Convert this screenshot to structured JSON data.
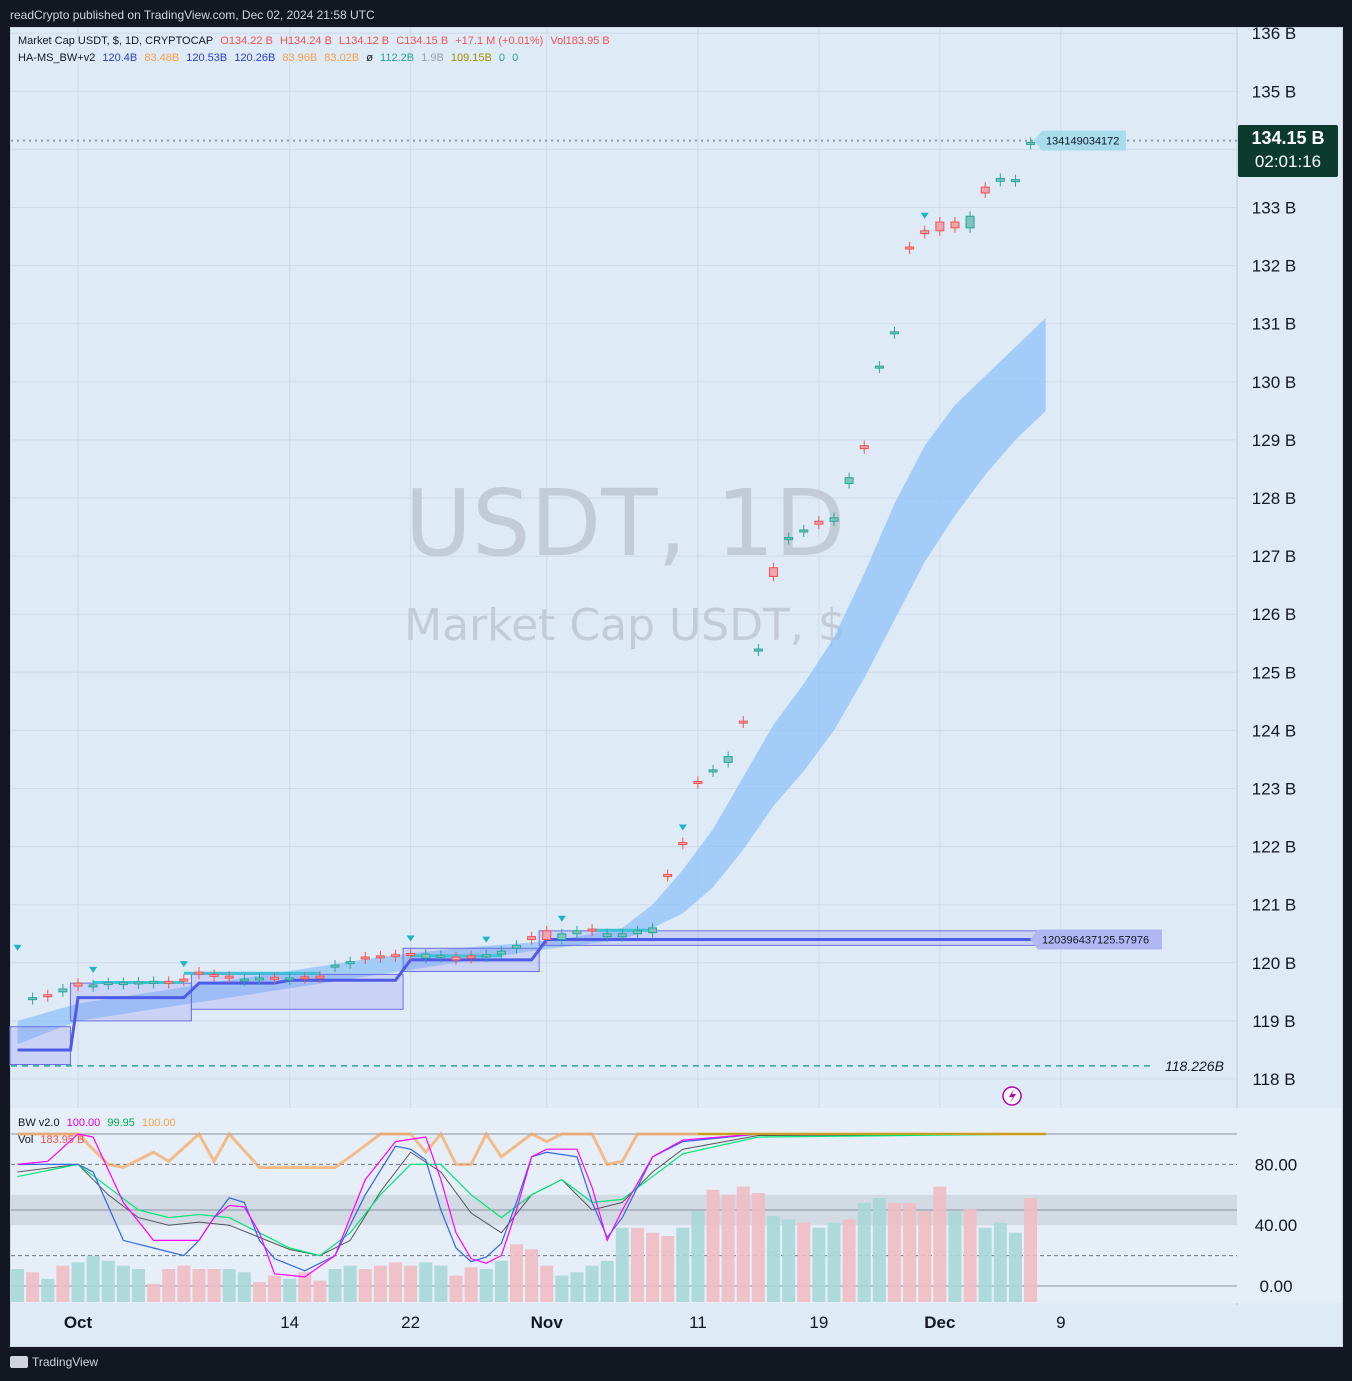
{
  "header": {
    "publisher": "readCrypto published on TradingView.com, Dec 02, 2024 21:58 UTC"
  },
  "footer": {
    "brand": "TradingView"
  },
  "legend": {
    "main": {
      "symbol": "Market Cap USDT, $, 1D, CRYPTOCAP",
      "o": "O134.22 B",
      "h": "H134.24 B",
      "l": "L134.12 B",
      "c": "C134.15 B",
      "chg": "+17.1 M (+0.01%)",
      "vol": "Vol183.95 B"
    },
    "indicator": {
      "name": "HA-MS_BW+v2",
      "v1": "120.4B",
      "v2": "83.48B",
      "v3": "120.53B",
      "v4": "120.26B",
      "v5": "83.96B",
      "v6": "83.02B",
      "sym": "ø",
      "v7": "112.2B",
      "v8": "1.9B",
      "v9": "109.15B",
      "v10": "0",
      "v11": "0"
    },
    "bw": {
      "name": "BW v2.0",
      "a": "100.00",
      "b": "99.95",
      "c": "100.00"
    },
    "vol": {
      "name": "Vol",
      "value": "183.95 B"
    }
  },
  "watermark": {
    "line1": "USDT, 1D",
    "line2": "Market Cap USDT, $"
  },
  "price_badge": {
    "value": "134.15 B",
    "timer": "02:01:16"
  },
  "labels": {
    "top_line": "134149034172",
    "mid_line": "120396437125.57976",
    "dashed_line": "118.226B"
  },
  "colors": {
    "up": "#26a69a",
    "down": "#ef5350",
    "band": "#90c2f9",
    "stair": "#4e5be6",
    "pink": "#ff00ff",
    "green": "#00e676",
    "orange": "#f7a14d"
  },
  "chart_data": {
    "type": "candlestick",
    "y_axis_ticks": [
      "136 B",
      "135 B",
      "134 B",
      "133 B",
      "132 B",
      "131 B",
      "130 B",
      "129 B",
      "128 B",
      "127 B",
      "126 B",
      "125 B",
      "124 B",
      "123 B",
      "122 B",
      "121 B",
      "120 B",
      "119 B",
      "118 B"
    ],
    "osc_axis_ticks": [
      "80.00",
      "40.00",
      "0.00"
    ],
    "x_axis_ticks": [
      "Oct",
      "14",
      "22",
      "Nov",
      "11",
      "19",
      "Dec",
      "9"
    ],
    "x_ticks_pos": [
      0,
      14,
      22,
      31,
      41,
      49,
      57,
      65
    ],
    "ylim": [
      117.5,
      136.0
    ],
    "candles": [
      [
        -3,
        119.4,
        119.4,
        "u"
      ],
      [
        -2,
        119.45,
        119.45,
        "d"
      ],
      [
        -1,
        119.5,
        119.55,
        "u"
      ],
      [
        0,
        119.6,
        119.65,
        "d"
      ],
      [
        1,
        119.6,
        119.62,
        "u"
      ],
      [
        2,
        119.64,
        119.66,
        "u"
      ],
      [
        3,
        119.65,
        119.66,
        "u"
      ],
      [
        4,
        119.66,
        119.67,
        "u"
      ],
      [
        5,
        119.66,
        119.68,
        "u"
      ],
      [
        6,
        119.67,
        119.68,
        "d"
      ],
      [
        7,
        119.7,
        119.72,
        "d"
      ],
      [
        8,
        119.82,
        119.84,
        "d"
      ],
      [
        9,
        119.78,
        119.8,
        "d"
      ],
      [
        10,
        119.75,
        119.77,
        "d"
      ],
      [
        11,
        119.7,
        119.72,
        "u"
      ],
      [
        12,
        119.72,
        119.74,
        "u"
      ],
      [
        13,
        119.73,
        119.75,
        "d"
      ],
      [
        14,
        119.72,
        119.74,
        "u"
      ],
      [
        15,
        119.74,
        119.76,
        "d"
      ],
      [
        16,
        119.75,
        119.77,
        "d"
      ],
      [
        17,
        119.95,
        119.96,
        "u"
      ],
      [
        18,
        120.0,
        120.02,
        "u"
      ],
      [
        19,
        120.08,
        120.1,
        "d"
      ],
      [
        20,
        120.1,
        120.12,
        "d"
      ],
      [
        21,
        120.12,
        120.14,
        "d"
      ],
      [
        22,
        120.14,
        120.16,
        "d"
      ],
      [
        23,
        120.08,
        120.15,
        "u"
      ],
      [
        24,
        120.1,
        120.13,
        "u"
      ],
      [
        25,
        120.05,
        120.1,
        "d"
      ],
      [
        26,
        120.08,
        120.12,
        "d"
      ],
      [
        27,
        120.1,
        120.14,
        "u"
      ],
      [
        28,
        120.15,
        120.2,
        "u"
      ],
      [
        29,
        120.25,
        120.3,
        "u"
      ],
      [
        30,
        120.4,
        120.45,
        "d"
      ],
      [
        31,
        120.4,
        120.55,
        "d"
      ],
      [
        32,
        120.4,
        120.5,
        "u"
      ],
      [
        33,
        120.5,
        120.55,
        "u"
      ],
      [
        34,
        120.55,
        120.58,
        "d"
      ],
      [
        35,
        120.45,
        120.5,
        "u"
      ],
      [
        36,
        120.45,
        120.5,
        "u"
      ],
      [
        37,
        120.5,
        120.55,
        "u"
      ],
      [
        38,
        120.52,
        120.6,
        "u"
      ],
      [
        39,
        121.5,
        121.52,
        "d"
      ],
      [
        40,
        122.05,
        122.07,
        "d"
      ],
      [
        41,
        123.1,
        123.12,
        "d"
      ],
      [
        42,
        123.3,
        123.32,
        "u"
      ],
      [
        43,
        123.45,
        123.55,
        "u"
      ],
      [
        44,
        124.13,
        124.16,
        "d"
      ],
      [
        45,
        125.37,
        125.4,
        "u"
      ],
      [
        46,
        126.65,
        126.8,
        "d"
      ],
      [
        47,
        127.3,
        127.32,
        "u"
      ],
      [
        48,
        127.43,
        127.45,
        "u"
      ],
      [
        49,
        127.55,
        127.6,
        "d"
      ],
      [
        50,
        127.6,
        127.66,
        "u"
      ],
      [
        51,
        128.25,
        128.35,
        "u"
      ],
      [
        52,
        128.85,
        128.9,
        "d"
      ],
      [
        53,
        130.25,
        130.27,
        "u"
      ],
      [
        54,
        130.84,
        130.86,
        "u"
      ],
      [
        55,
        132.3,
        132.32,
        "d"
      ],
      [
        56,
        132.55,
        132.6,
        "d"
      ],
      [
        57,
        132.6,
        132.75,
        "d"
      ],
      [
        58,
        132.65,
        132.75,
        "d"
      ],
      [
        59,
        132.65,
        132.85,
        "u"
      ],
      [
        60,
        133.25,
        133.35,
        "d"
      ],
      [
        61,
        133.45,
        133.5,
        "u"
      ],
      [
        62,
        133.47,
        133.48,
        "u"
      ],
      [
        63,
        134.1,
        134.12,
        "u"
      ],
      [
        64,
        134.12,
        134.22,
        "d"
      ]
    ],
    "band_days": [
      -4,
      0,
      5,
      10,
      15,
      20,
      25,
      30,
      33,
      36,
      38,
      40,
      42,
      44,
      46,
      48,
      50,
      52,
      54,
      56,
      58,
      60,
      62,
      64
    ],
    "band_upper": [
      119.0,
      119.3,
      119.5,
      119.7,
      119.9,
      120.1,
      120.25,
      120.35,
      120.45,
      120.6,
      121.0,
      121.6,
      122.3,
      123.2,
      124.1,
      124.8,
      125.6,
      126.7,
      127.9,
      128.9,
      129.6,
      130.1,
      130.6,
      131.1
    ],
    "band_lower": [
      118.6,
      119.0,
      119.2,
      119.4,
      119.6,
      119.8,
      120.0,
      120.2,
      120.3,
      120.4,
      120.6,
      120.85,
      121.3,
      121.95,
      122.7,
      123.3,
      124.0,
      124.9,
      125.9,
      126.9,
      127.7,
      128.4,
      129.0,
      129.5
    ],
    "stair": [
      [
        -4,
        118.5
      ],
      [
        -0.5,
        118.5
      ],
      [
        0,
        119.4
      ],
      [
        7,
        119.4
      ],
      [
        8,
        119.65
      ],
      [
        13,
        119.65
      ],
      [
        14,
        119.7
      ],
      [
        21,
        119.7
      ],
      [
        22,
        120.05
      ],
      [
        28,
        120.05
      ],
      [
        30,
        120.05
      ],
      [
        31,
        120.4
      ],
      [
        64,
        120.4
      ]
    ],
    "hline_mid": 120.4,
    "hline_top": 134.15,
    "hline_dashed": 118.226,
    "osc_pink": [
      [
        -4,
        80
      ],
      [
        -2,
        82
      ],
      [
        0,
        100
      ],
      [
        1,
        98
      ],
      [
        3,
        55
      ],
      [
        5,
        30
      ],
      [
        8,
        30
      ],
      [
        9,
        45
      ],
      [
        10,
        53
      ],
      [
        11,
        52
      ],
      [
        12,
        35
      ],
      [
        13,
        8
      ],
      [
        15,
        6
      ],
      [
        17,
        20
      ],
      [
        19,
        70
      ],
      [
        21,
        95
      ],
      [
        23,
        98
      ],
      [
        24,
        70
      ],
      [
        25,
        35
      ],
      [
        26,
        18
      ],
      [
        27,
        15
      ],
      [
        28,
        20
      ],
      [
        29,
        50
      ],
      [
        30,
        85
      ],
      [
        31,
        90
      ],
      [
        33,
        90
      ],
      [
        34,
        65
      ],
      [
        35,
        30
      ],
      [
        36,
        50
      ],
      [
        38,
        85
      ],
      [
        40,
        96
      ],
      [
        45,
        100
      ],
      [
        64,
        100
      ]
    ],
    "osc_blue": [
      [
        -4,
        80
      ],
      [
        0,
        80
      ],
      [
        1,
        75
      ],
      [
        3,
        30
      ],
      [
        5,
        25
      ],
      [
        7,
        20
      ],
      [
        8,
        30
      ],
      [
        9,
        45
      ],
      [
        10,
        58
      ],
      [
        11,
        55
      ],
      [
        12,
        30
      ],
      [
        13,
        18
      ],
      [
        15,
        10
      ],
      [
        17,
        20
      ],
      [
        19,
        60
      ],
      [
        21,
        92
      ],
      [
        22,
        90
      ],
      [
        23,
        83
      ],
      [
        24,
        50
      ],
      [
        25,
        25
      ],
      [
        26,
        16
      ],
      [
        27,
        19
      ],
      [
        28,
        28
      ],
      [
        29,
        55
      ],
      [
        30,
        85
      ],
      [
        31,
        88
      ],
      [
        33,
        85
      ],
      [
        34,
        55
      ],
      [
        35,
        32
      ],
      [
        36,
        45
      ],
      [
        38,
        85
      ],
      [
        40,
        95
      ],
      [
        45,
        100
      ],
      [
        64,
        100
      ]
    ],
    "osc_gray": [
      [
        -4,
        75
      ],
      [
        0,
        80
      ],
      [
        2,
        60
      ],
      [
        4,
        45
      ],
      [
        6,
        40
      ],
      [
        8,
        42
      ],
      [
        10,
        40
      ],
      [
        12,
        32
      ],
      [
        14,
        24
      ],
      [
        16,
        20
      ],
      [
        18,
        30
      ],
      [
        20,
        62
      ],
      [
        22,
        88
      ],
      [
        24,
        75
      ],
      [
        26,
        48
      ],
      [
        28,
        35
      ],
      [
        30,
        60
      ],
      [
        32,
        70
      ],
      [
        34,
        50
      ],
      [
        36,
        55
      ],
      [
        38,
        75
      ],
      [
        40,
        90
      ],
      [
        45,
        99
      ],
      [
        64,
        100
      ]
    ],
    "osc_green": [
      [
        -4,
        72
      ],
      [
        0,
        80
      ],
      [
        2,
        65
      ],
      [
        4,
        50
      ],
      [
        6,
        45
      ],
      [
        8,
        47
      ],
      [
        10,
        45
      ],
      [
        12,
        35
      ],
      [
        14,
        25
      ],
      [
        16,
        20
      ],
      [
        18,
        35
      ],
      [
        20,
        60
      ],
      [
        22,
        80
      ],
      [
        24,
        80
      ],
      [
        26,
        60
      ],
      [
        28,
        45
      ],
      [
        30,
        60
      ],
      [
        32,
        70
      ],
      [
        34,
        55
      ],
      [
        36,
        57
      ],
      [
        38,
        72
      ],
      [
        40,
        87
      ],
      [
        45,
        98
      ],
      [
        64,
        100
      ]
    ],
    "volume": [
      [
        -4,
        20,
        "u"
      ],
      [
        -3,
        18,
        "d"
      ],
      [
        -2,
        14,
        "u"
      ],
      [
        -1,
        22,
        "d"
      ],
      [
        0,
        24,
        "u"
      ],
      [
        1,
        28,
        "u"
      ],
      [
        2,
        25,
        "u"
      ],
      [
        3,
        22,
        "u"
      ],
      [
        4,
        20,
        "u"
      ],
      [
        5,
        11,
        "d"
      ],
      [
        6,
        20,
        "d"
      ],
      [
        7,
        22,
        "d"
      ],
      [
        8,
        20,
        "d"
      ],
      [
        9,
        20,
        "d"
      ],
      [
        10,
        20,
        "u"
      ],
      [
        11,
        18,
        "u"
      ],
      [
        12,
        12,
        "d"
      ],
      [
        13,
        16,
        "d"
      ],
      [
        14,
        14,
        "u"
      ],
      [
        15,
        18,
        "d"
      ],
      [
        16,
        13,
        "d"
      ],
      [
        17,
        20,
        "u"
      ],
      [
        18,
        22,
        "u"
      ],
      [
        19,
        20,
        "d"
      ],
      [
        20,
        22,
        "d"
      ],
      [
        21,
        24,
        "d"
      ],
      [
        22,
        22,
        "d"
      ],
      [
        23,
        24,
        "u"
      ],
      [
        24,
        22,
        "u"
      ],
      [
        25,
        16,
        "d"
      ],
      [
        26,
        21,
        "d"
      ],
      [
        27,
        20,
        "u"
      ],
      [
        28,
        25,
        "u"
      ],
      [
        29,
        35,
        "d"
      ],
      [
        30,
        32,
        "d"
      ],
      [
        31,
        22,
        "d"
      ],
      [
        32,
        16,
        "u"
      ],
      [
        33,
        18,
        "u"
      ],
      [
        34,
        22,
        "u"
      ],
      [
        35,
        25,
        "u"
      ],
      [
        36,
        45,
        "u"
      ],
      [
        37,
        45,
        "d"
      ],
      [
        38,
        42,
        "d"
      ],
      [
        39,
        40,
        "d"
      ],
      [
        40,
        45,
        "u"
      ],
      [
        41,
        55,
        "u"
      ],
      [
        42,
        68,
        "d"
      ],
      [
        43,
        65,
        "d"
      ],
      [
        44,
        70,
        "d"
      ],
      [
        45,
        66,
        "d"
      ],
      [
        46,
        52,
        "u"
      ],
      [
        47,
        50,
        "u"
      ],
      [
        48,
        48,
        "d"
      ],
      [
        49,
        45,
        "u"
      ],
      [
        50,
        48,
        "u"
      ],
      [
        51,
        50,
        "d"
      ],
      [
        52,
        60,
        "u"
      ],
      [
        53,
        63,
        "u"
      ],
      [
        54,
        60,
        "d"
      ],
      [
        55,
        60,
        "d"
      ],
      [
        56,
        55,
        "d"
      ],
      [
        57,
        70,
        "d"
      ],
      [
        58,
        55,
        "u"
      ],
      [
        59,
        56,
        "d"
      ],
      [
        60,
        45,
        "u"
      ],
      [
        61,
        48,
        "u"
      ],
      [
        62,
        42,
        "u"
      ],
      [
        63,
        63,
        "d"
      ]
    ]
  }
}
